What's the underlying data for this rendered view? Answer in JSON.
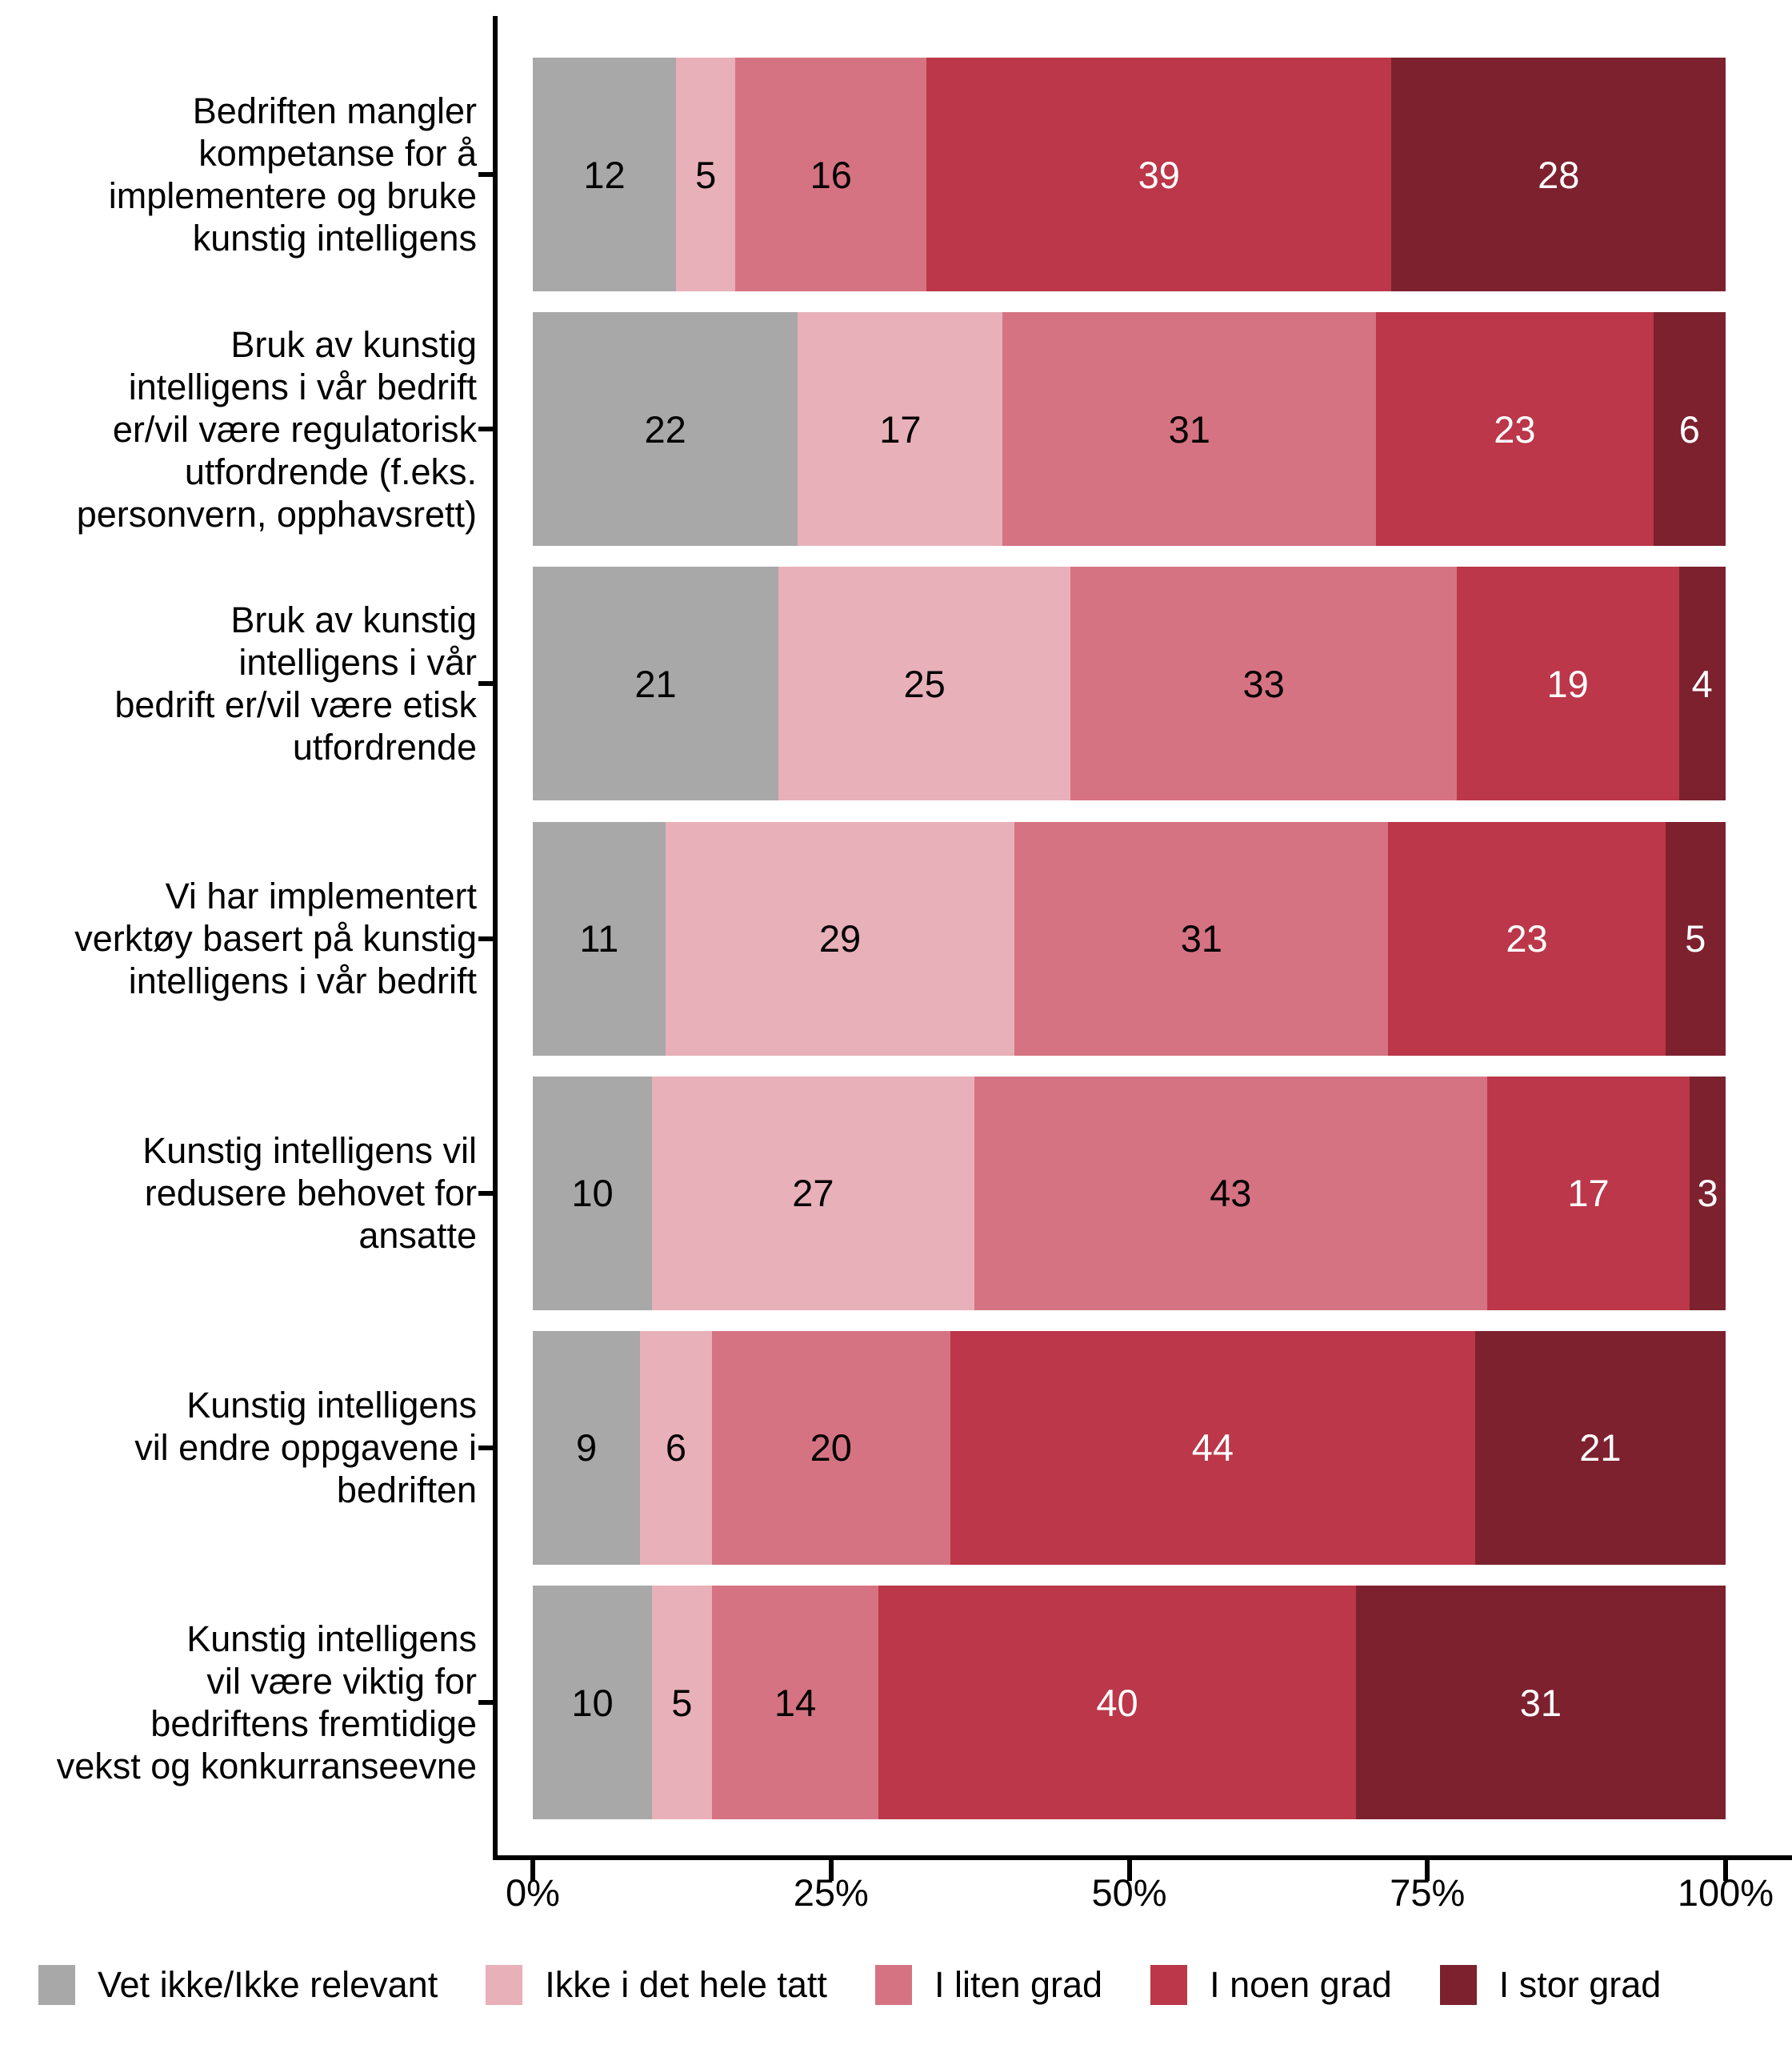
{
  "chart_data": {
    "type": "bar",
    "orientation": "horizontal",
    "stacked": true,
    "unit": "percent",
    "title": "",
    "xlabel": "",
    "ylabel": "",
    "xlim": [
      0,
      100
    ],
    "grid": false,
    "legend_position": "bottom",
    "axis_color": "#000000",
    "categories": [
      "Bedriften mangler\nkompetanse for å\nimplementere og bruke\nkunstig intelligens",
      "Bruk av kunstig\nintelligens i vår bedrift\ner/vil være regulatorisk\nutfordrende (f.eks.\npersonvern, opphavsrett)",
      "Bruk av kunstig\nintelligens i vår\nbedrift er/vil være etisk\nutfordrende",
      "Vi har implementert\nverktøy basert på kunstig\nintelligens i vår bedrift",
      "Kunstig intelligens vil\nredusere behovet for\nansatte",
      "Kunstig intelligens\nvil endre oppgavene i\nbedriften",
      "Kunstig intelligens\nvil være viktig for\nbedriftens fremtidige\nvekst og konkurranseevne"
    ],
    "series": [
      {
        "name": "Vet ikke/Ikke relevant",
        "color": "#a8a8a8",
        "label_color": "#000000",
        "values": [
          12,
          22,
          21,
          11,
          10,
          9,
          10
        ]
      },
      {
        "name": "Ikke i det hele tatt",
        "color": "#e8b0b8",
        "label_color": "#000000",
        "values": [
          5,
          17,
          25,
          29,
          27,
          6,
          5
        ]
      },
      {
        "name": "I liten grad",
        "color": "#d57382",
        "label_color": "#000000",
        "values": [
          16,
          31,
          33,
          31,
          43,
          20,
          14
        ]
      },
      {
        "name": "I noen grad",
        "color": "#bb3749",
        "label_color": "#ffffff",
        "values": [
          39,
          23,
          19,
          23,
          17,
          44,
          40
        ]
      },
      {
        "name": "I stor grad",
        "color": "#7d212f",
        "label_color": "#ffffff",
        "values": [
          28,
          6,
          4,
          5,
          3,
          21,
          31
        ]
      }
    ],
    "x_ticks": [
      {
        "value": 0,
        "label": "0%"
      },
      {
        "value": 25,
        "label": "25%"
      },
      {
        "value": 50,
        "label": "50%"
      },
      {
        "value": 75,
        "label": "75%"
      },
      {
        "value": 100,
        "label": "100%"
      }
    ]
  }
}
